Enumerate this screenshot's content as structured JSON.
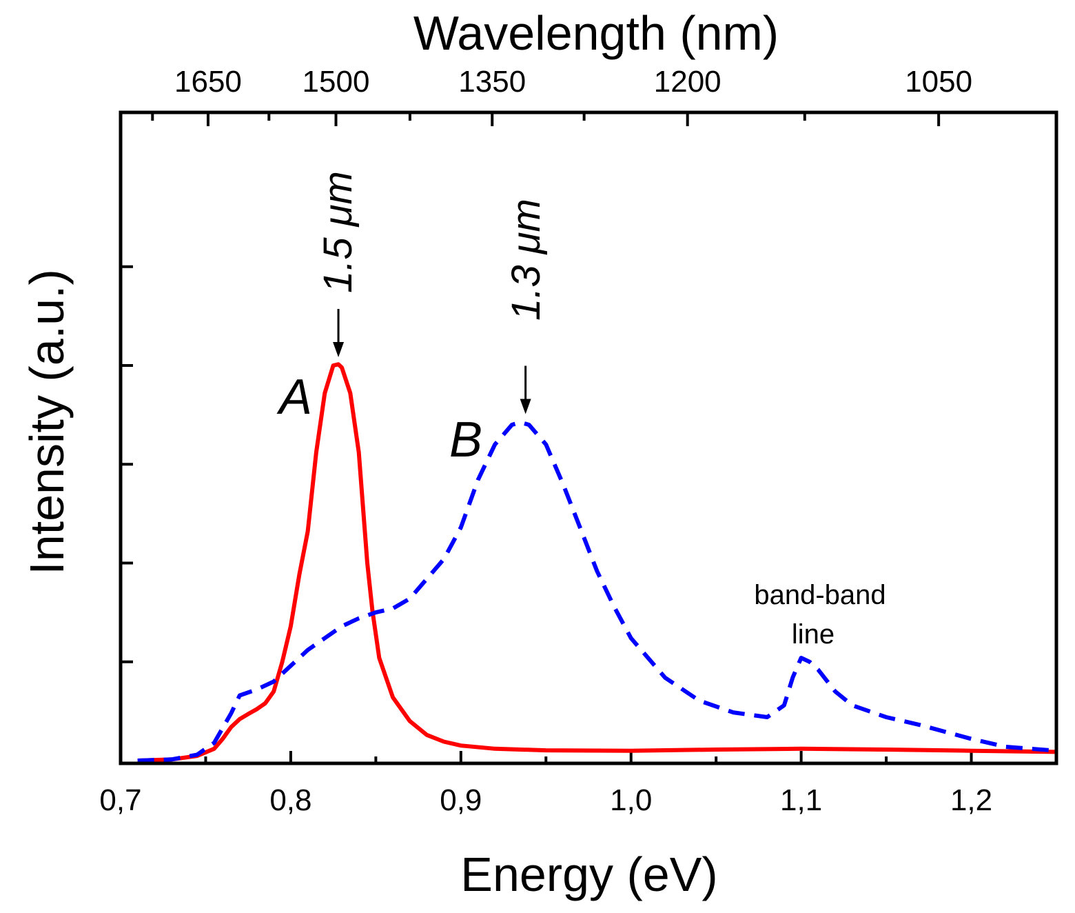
{
  "chart_data": {
    "type": "line",
    "title": "",
    "xlabel": "Energy (eV)",
    "ylabel": "Intensity (a.u.)",
    "x2label": "Wavelength (nm)",
    "xlim": [
      0.7,
      1.25
    ],
    "ylim": [
      0,
      1.0
    ],
    "grid": false,
    "xticks": [
      {
        "value": 0.7,
        "label": "0,7"
      },
      {
        "value": 0.8,
        "label": "0,8"
      },
      {
        "value": 0.9,
        "label": "0,9"
      },
      {
        "value": 1.0,
        "label": "1,0"
      },
      {
        "value": 1.1,
        "label": "1,1"
      },
      {
        "value": 1.2,
        "label": "1,2"
      }
    ],
    "wavelength_ticks": [
      {
        "nm": 1650,
        "label": "1650"
      },
      {
        "nm": 1500,
        "label": "1500"
      },
      {
        "nm": 1350,
        "label": "1350"
      },
      {
        "nm": 1200,
        "label": "1200"
      },
      {
        "nm": 1050,
        "label": "1050"
      }
    ],
    "wavelength_minor_ticks": [
      1725,
      1575,
      1425,
      1275,
      1125,
      975
    ],
    "ytick_values": [
      0.25,
      0.5,
      0.75,
      1.0,
      1.25
    ],
    "series": [
      {
        "name": "A",
        "label": "A",
        "style": "solid",
        "color": "#ff0000",
        "x": [
          0.71,
          0.73,
          0.745,
          0.755,
          0.76,
          0.765,
          0.77,
          0.775,
          0.78,
          0.785,
          0.79,
          0.795,
          0.8,
          0.805,
          0.81,
          0.815,
          0.82,
          0.825,
          0.828,
          0.83,
          0.835,
          0.84,
          0.845,
          0.848,
          0.852,
          0.86,
          0.87,
          0.88,
          0.89,
          0.9,
          0.92,
          0.95,
          1.0,
          1.05,
          1.1,
          1.15,
          1.2,
          1.25
        ],
        "y": [
          0.0,
          0.003,
          0.012,
          0.03,
          0.055,
          0.085,
          0.105,
          0.118,
          0.13,
          0.145,
          0.175,
          0.25,
          0.34,
          0.47,
          0.58,
          0.78,
          0.93,
          1.0,
          1.003,
          0.995,
          0.93,
          0.78,
          0.5,
          0.38,
          0.26,
          0.16,
          0.1,
          0.065,
          0.048,
          0.038,
          0.03,
          0.026,
          0.025,
          0.028,
          0.03,
          0.028,
          0.025,
          0.022
        ]
      },
      {
        "name": "B",
        "label": "B",
        "style": "dashed",
        "color": "#0000ff",
        "x": [
          0.71,
          0.73,
          0.745,
          0.755,
          0.765,
          0.77,
          0.78,
          0.79,
          0.8,
          0.81,
          0.82,
          0.83,
          0.84,
          0.85,
          0.86,
          0.87,
          0.88,
          0.89,
          0.9,
          0.91,
          0.92,
          0.93,
          0.935,
          0.94,
          0.95,
          0.96,
          0.97,
          0.98,
          0.99,
          1.0,
          1.02,
          1.04,
          1.06,
          1.08,
          1.09,
          1.095,
          1.1,
          1.105,
          1.11,
          1.12,
          1.13,
          1.15,
          1.17,
          1.2,
          1.22,
          1.25
        ],
        "y": [
          0.0,
          0.003,
          0.015,
          0.045,
          0.12,
          0.165,
          0.18,
          0.2,
          0.24,
          0.28,
          0.31,
          0.34,
          0.36,
          0.375,
          0.385,
          0.41,
          0.46,
          0.51,
          0.59,
          0.71,
          0.8,
          0.85,
          0.856,
          0.85,
          0.8,
          0.7,
          0.59,
          0.48,
          0.39,
          0.31,
          0.21,
          0.152,
          0.122,
          0.11,
          0.14,
          0.21,
          0.26,
          0.25,
          0.23,
          0.175,
          0.14,
          0.11,
          0.09,
          0.055,
          0.035,
          0.025
        ]
      }
    ],
    "annotations": [
      {
        "text": "1.5 μm",
        "x": 0.828,
        "y": 1.0,
        "arrow": true
      },
      {
        "text": "1.3 μm",
        "x": 0.938,
        "y": 0.856,
        "arrow": true
      },
      {
        "text": "band-band",
        "x": 1.105,
        "y": 0.26
      },
      {
        "text": "line",
        "x": 1.105,
        "y": 0.26
      }
    ]
  }
}
